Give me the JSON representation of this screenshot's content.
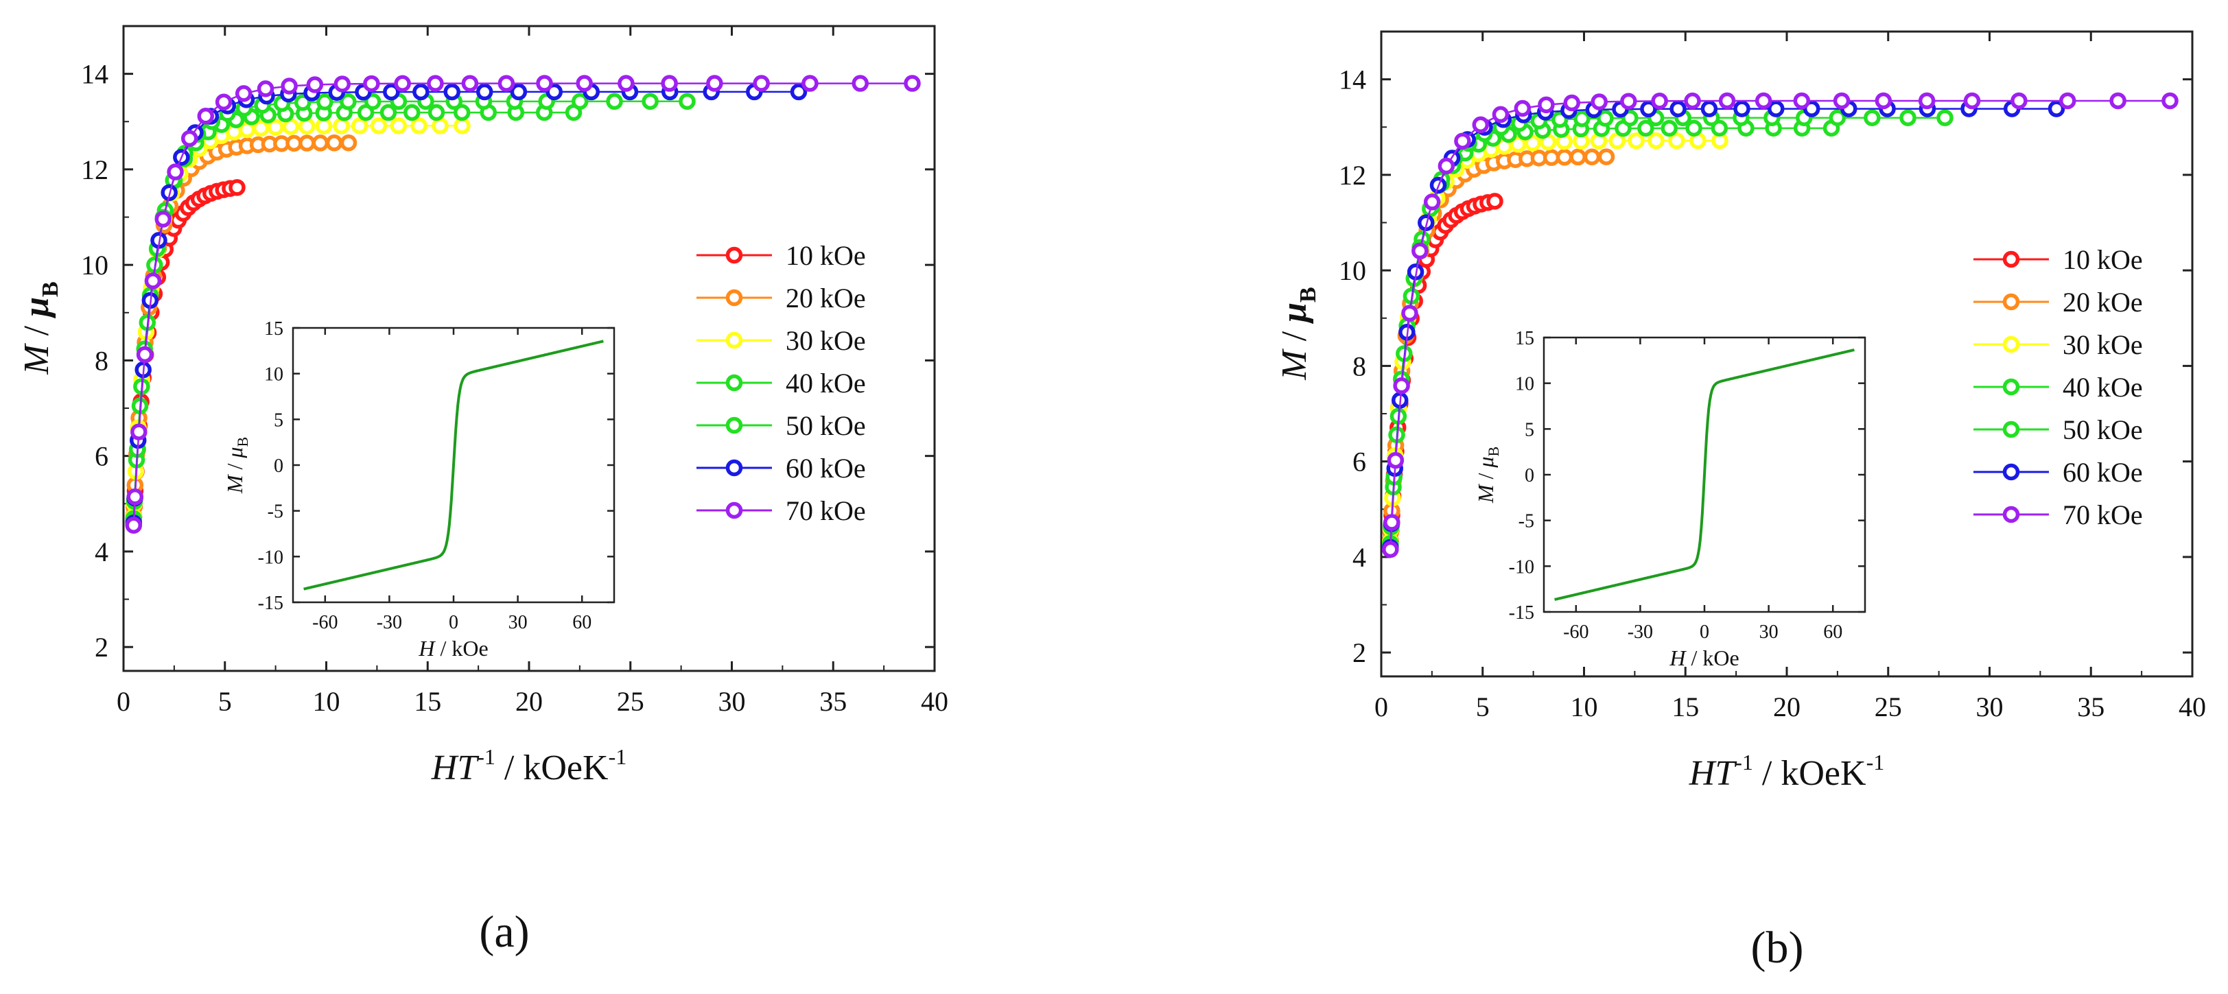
{
  "chart_data": [
    {
      "type": "scatter",
      "panel_label": "(a)",
      "xlabel": {
        "main": "HT",
        "sup": "-1",
        "unit_main": " / kOeK",
        "unit_sup": "-1"
      },
      "ylabel": {
        "main": "M",
        "sep": " / ",
        "mu": "μ",
        "sub": "B"
      },
      "xlim": [
        0,
        40
      ],
      "ylim": [
        1.5,
        15
      ],
      "xticks": [
        "0",
        "5",
        "10",
        "15",
        "20",
        "25",
        "30",
        "35",
        "40"
      ],
      "yticks": [
        "2",
        "4",
        "6",
        "8",
        "10",
        "12",
        "14"
      ],
      "curve": {
        "a": 1.0,
        "Ms": 13.8,
        "x0": 0.5,
        "h": 0.55
      },
      "series": [
        {
          "name": "10 kOe",
          "color": "#ff1a1a",
          "field": 10,
          "xmax": 5.6
        },
        {
          "name": "20 kOe",
          "color": "#ff8a1a",
          "field": 20,
          "xmax": 11.1
        },
        {
          "name": "30 kOe",
          "color": "#ffff1a",
          "field": 30,
          "xmax": 16.7
        },
        {
          "name": "40 kOe",
          "color": "#22e022",
          "field": 40,
          "xmax": 22.2
        },
        {
          "name": "50 kOe",
          "color": "#22e022",
          "field": 50,
          "xmax": 27.8
        },
        {
          "name": "60 kOe",
          "color": "#1a1ae6",
          "field": 60,
          "xmax": 33.3
        },
        {
          "name": "70 kOe",
          "color": "#a020f0",
          "field": 70,
          "xmax": 38.9
        }
      ],
      "inset": {
        "type": "line",
        "color": "#1e9c1e",
        "xlabel": {
          "main": "H",
          "unit": " / kOe"
        },
        "ylabel": {
          "main": "M",
          "sep": " / ",
          "mu": "μ",
          "sub": "B"
        },
        "xlim": [
          -75,
          75
        ],
        "ylim": [
          -15,
          15
        ],
        "xticks": [
          "-60",
          "-30",
          "0",
          "30",
          "60"
        ],
        "yticks": [
          "-15",
          "-10",
          "-5",
          "0",
          "5",
          "10",
          "15"
        ],
        "x_range": [
          -70,
          70
        ],
        "curve": {
          "sat": 9.7,
          "H0": 2.5,
          "slope": 0.055
        }
      }
    },
    {
      "type": "scatter",
      "panel_label": "(b)",
      "xlabel": {
        "main": "HT",
        "sup": "-1",
        "unit_main": " / kOeK",
        "unit_sup": "-1"
      },
      "ylabel": {
        "main": "M",
        "sep": " / ",
        "mu": "μ",
        "sub": "B"
      },
      "xlim": [
        0,
        40
      ],
      "ylim": [
        1.5,
        15
      ],
      "xticks": [
        "0",
        "5",
        "10",
        "15",
        "20",
        "25",
        "30",
        "35",
        "40"
      ],
      "yticks": [
        "2",
        "4",
        "6",
        "8",
        "10",
        "12",
        "14"
      ],
      "curve": {
        "a": 1.1,
        "Ms": 13.55,
        "x0": 0.45,
        "h": 0.55
      },
      "series": [
        {
          "name": "10 kOe",
          "color": "#ff1a1a",
          "field": 10,
          "xmax": 5.6
        },
        {
          "name": "20 kOe",
          "color": "#ff8a1a",
          "field": 20,
          "xmax": 11.1
        },
        {
          "name": "30 kOe",
          "color": "#ffff1a",
          "field": 30,
          "xmax": 16.7
        },
        {
          "name": "40 kOe",
          "color": "#22e022",
          "field": 40,
          "xmax": 22.2
        },
        {
          "name": "50 kOe",
          "color": "#22e022",
          "field": 50,
          "xmax": 27.8
        },
        {
          "name": "60 kOe",
          "color": "#1a1ae6",
          "field": 60,
          "xmax": 33.3
        },
        {
          "name": "70 kOe",
          "color": "#a020f0",
          "field": 70,
          "xmax": 38.9
        }
      ],
      "inset": {
        "type": "line",
        "color": "#1e9c1e",
        "xlabel": {
          "main": "H",
          "unit": " / kOe"
        },
        "ylabel": {
          "main": "M",
          "sep": " / ",
          "mu": "μ",
          "sub": "B"
        },
        "xlim": [
          -75,
          75
        ],
        "ylim": [
          -15,
          15
        ],
        "xticks": [
          "-60",
          "-30",
          "0",
          "30",
          "60"
        ],
        "yticks": [
          "-15",
          "-10",
          "-5",
          "0",
          "5",
          "10",
          "15"
        ],
        "x_range": [
          -70,
          70
        ],
        "curve": {
          "sat": 9.8,
          "H0": 2.2,
          "slope": 0.055
        }
      }
    }
  ]
}
